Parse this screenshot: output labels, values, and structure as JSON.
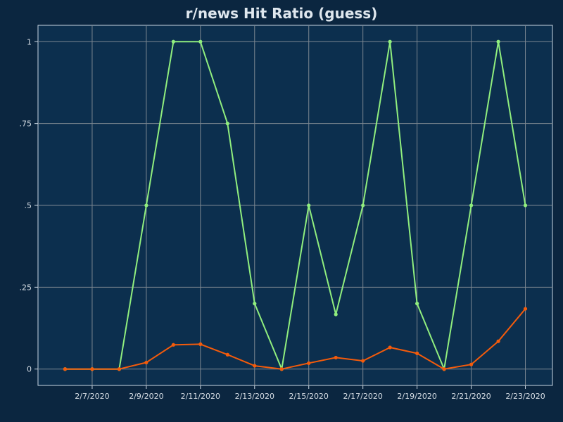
{
  "chart_data": {
    "type": "line",
    "title": "r/news Hit Ratio (guess)",
    "xlabel": "",
    "ylabel": "",
    "x_dates": [
      "2/6/2020",
      "2/7/2020",
      "2/8/2020",
      "2/9/2020",
      "2/10/2020",
      "2/11/2020",
      "2/12/2020",
      "2/13/2020",
      "2/14/2020",
      "2/15/2020",
      "2/16/2020",
      "2/17/2020",
      "2/18/2020",
      "2/19/2020",
      "2/20/2020",
      "2/21/2020",
      "2/22/2020",
      "2/23/2020"
    ],
    "xlim": [
      "2/5/2020",
      "2/24/2020"
    ],
    "x_tick_labels": [
      "2/7/2020",
      "2/9/2020",
      "2/11/2020",
      "2/13/2020",
      "2/15/2020",
      "2/17/2020",
      "2/19/2020",
      "2/21/2020",
      "2/23/2020"
    ],
    "y_ticks": [
      0,
      0.25,
      0.5,
      0.75,
      1
    ],
    "y_tick_labels": [
      "0",
      ".25",
      ".5",
      ".75",
      "1"
    ],
    "ylim": [
      -0.05,
      1.05
    ],
    "grid": true,
    "series": [
      {
        "color": "#90ee7e",
        "values": [
          0,
          0,
          0,
          0.5,
          1,
          1,
          0.75,
          0.2,
          0,
          0.5,
          0.167,
          0.5,
          1,
          0.2,
          0,
          0.5,
          1,
          0.5
        ]
      },
      {
        "color": "#f45b0b",
        "values": [
          0,
          0,
          0,
          0.02,
          0.074,
          0.076,
          0.044,
          0.01,
          0,
          0.018,
          0.035,
          0.025,
          0.066,
          0.048,
          0,
          0.014,
          0.085,
          0.184
        ]
      }
    ],
    "colors": {
      "background": "#0b2640",
      "plot_background": "#0c2f4e",
      "axis": "#c9d6e2",
      "grid": "#7c8791"
    }
  }
}
